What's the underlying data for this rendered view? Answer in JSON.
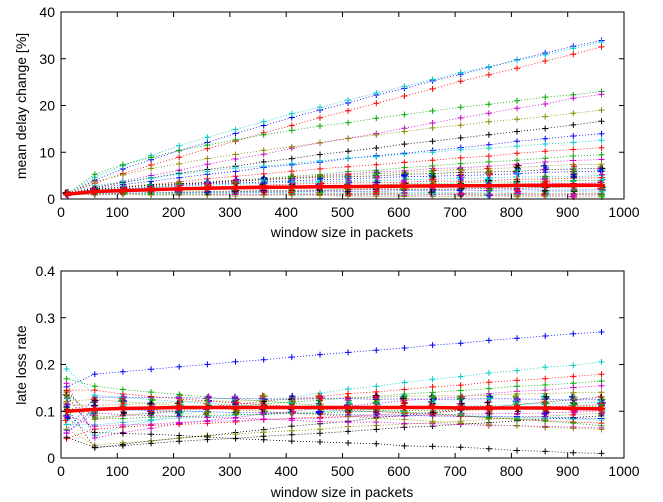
{
  "chart_data": [
    {
      "type": "scatter",
      "title": "",
      "xlabel": "window size in packets",
      "ylabel": "mean delay change [%]",
      "xlim": [
        0,
        1000
      ],
      "ylim": [
        0,
        40
      ],
      "xticks": [
        0,
        100,
        200,
        300,
        400,
        500,
        600,
        700,
        800,
        900,
        1000
      ],
      "yticks": [
        0,
        10,
        20,
        30,
        40
      ],
      "grid": false,
      "x": [
        10,
        60,
        110,
        160,
        210,
        260,
        310,
        360,
        410,
        460,
        510,
        560,
        610,
        660,
        710,
        760,
        810,
        860,
        910,
        960
      ],
      "series_colors": [
        "#0000ff",
        "#00cccc",
        "#ff0000",
        "#00aa00",
        "#cc00cc",
        "#888800",
        "#000000"
      ],
      "mean_series": {
        "color": "#ff0000",
        "values": [
          1.0,
          1.6,
          1.8,
          2.0,
          2.2,
          2.3,
          2.4,
          2.5,
          2.55,
          2.6,
          2.65,
          2.7,
          2.75,
          2.8,
          2.85,
          2.85,
          2.9,
          2.9,
          2.95,
          2.95
        ]
      },
      "series_end_values": [
        34,
        33.5,
        32.5,
        23,
        22.5,
        19,
        16.5,
        14,
        12.5,
        11,
        9.5,
        8.5,
        7.5,
        6.5,
        6,
        5,
        4.5,
        4,
        3.5,
        3,
        2.5,
        2,
        1.5,
        1.2,
        1,
        0.8,
        0.5
      ]
    },
    {
      "type": "scatter",
      "title": "",
      "xlabel": "window size in packets",
      "ylabel": "late loss rate",
      "xlim": [
        0,
        1000
      ],
      "ylim": [
        0,
        0.4
      ],
      "xticks": [
        0,
        100,
        200,
        300,
        400,
        500,
        600,
        700,
        800,
        900,
        1000
      ],
      "yticks": [
        0,
        0.1,
        0.2,
        0.3,
        0.4
      ],
      "grid": false,
      "x": [
        10,
        60,
        110,
        160,
        210,
        260,
        310,
        360,
        410,
        460,
        510,
        560,
        610,
        660,
        710,
        760,
        810,
        860,
        910,
        960
      ],
      "series_colors": [
        "#0000ff",
        "#00cccc",
        "#ff0000",
        "#00aa00",
        "#cc00cc",
        "#888800",
        "#000000"
      ],
      "mean_series": {
        "color": "#ff0000",
        "values": [
          0.1,
          0.104,
          0.106,
          0.107,
          0.108,
          0.108,
          0.108,
          0.108,
          0.108,
          0.108,
          0.108,
          0.108,
          0.108,
          0.108,
          0.107,
          0.107,
          0.107,
          0.107,
          0.106,
          0.105
        ]
      },
      "series_end_values": [
        0.27,
        0.205,
        0.18,
        0.165,
        0.155,
        0.14,
        0.13,
        0.125,
        0.12,
        0.115,
        0.11,
        0.1,
        0.095,
        0.09,
        0.085,
        0.08,
        0.075,
        0.07,
        0.065,
        0.06,
        0.01
      ]
    }
  ]
}
